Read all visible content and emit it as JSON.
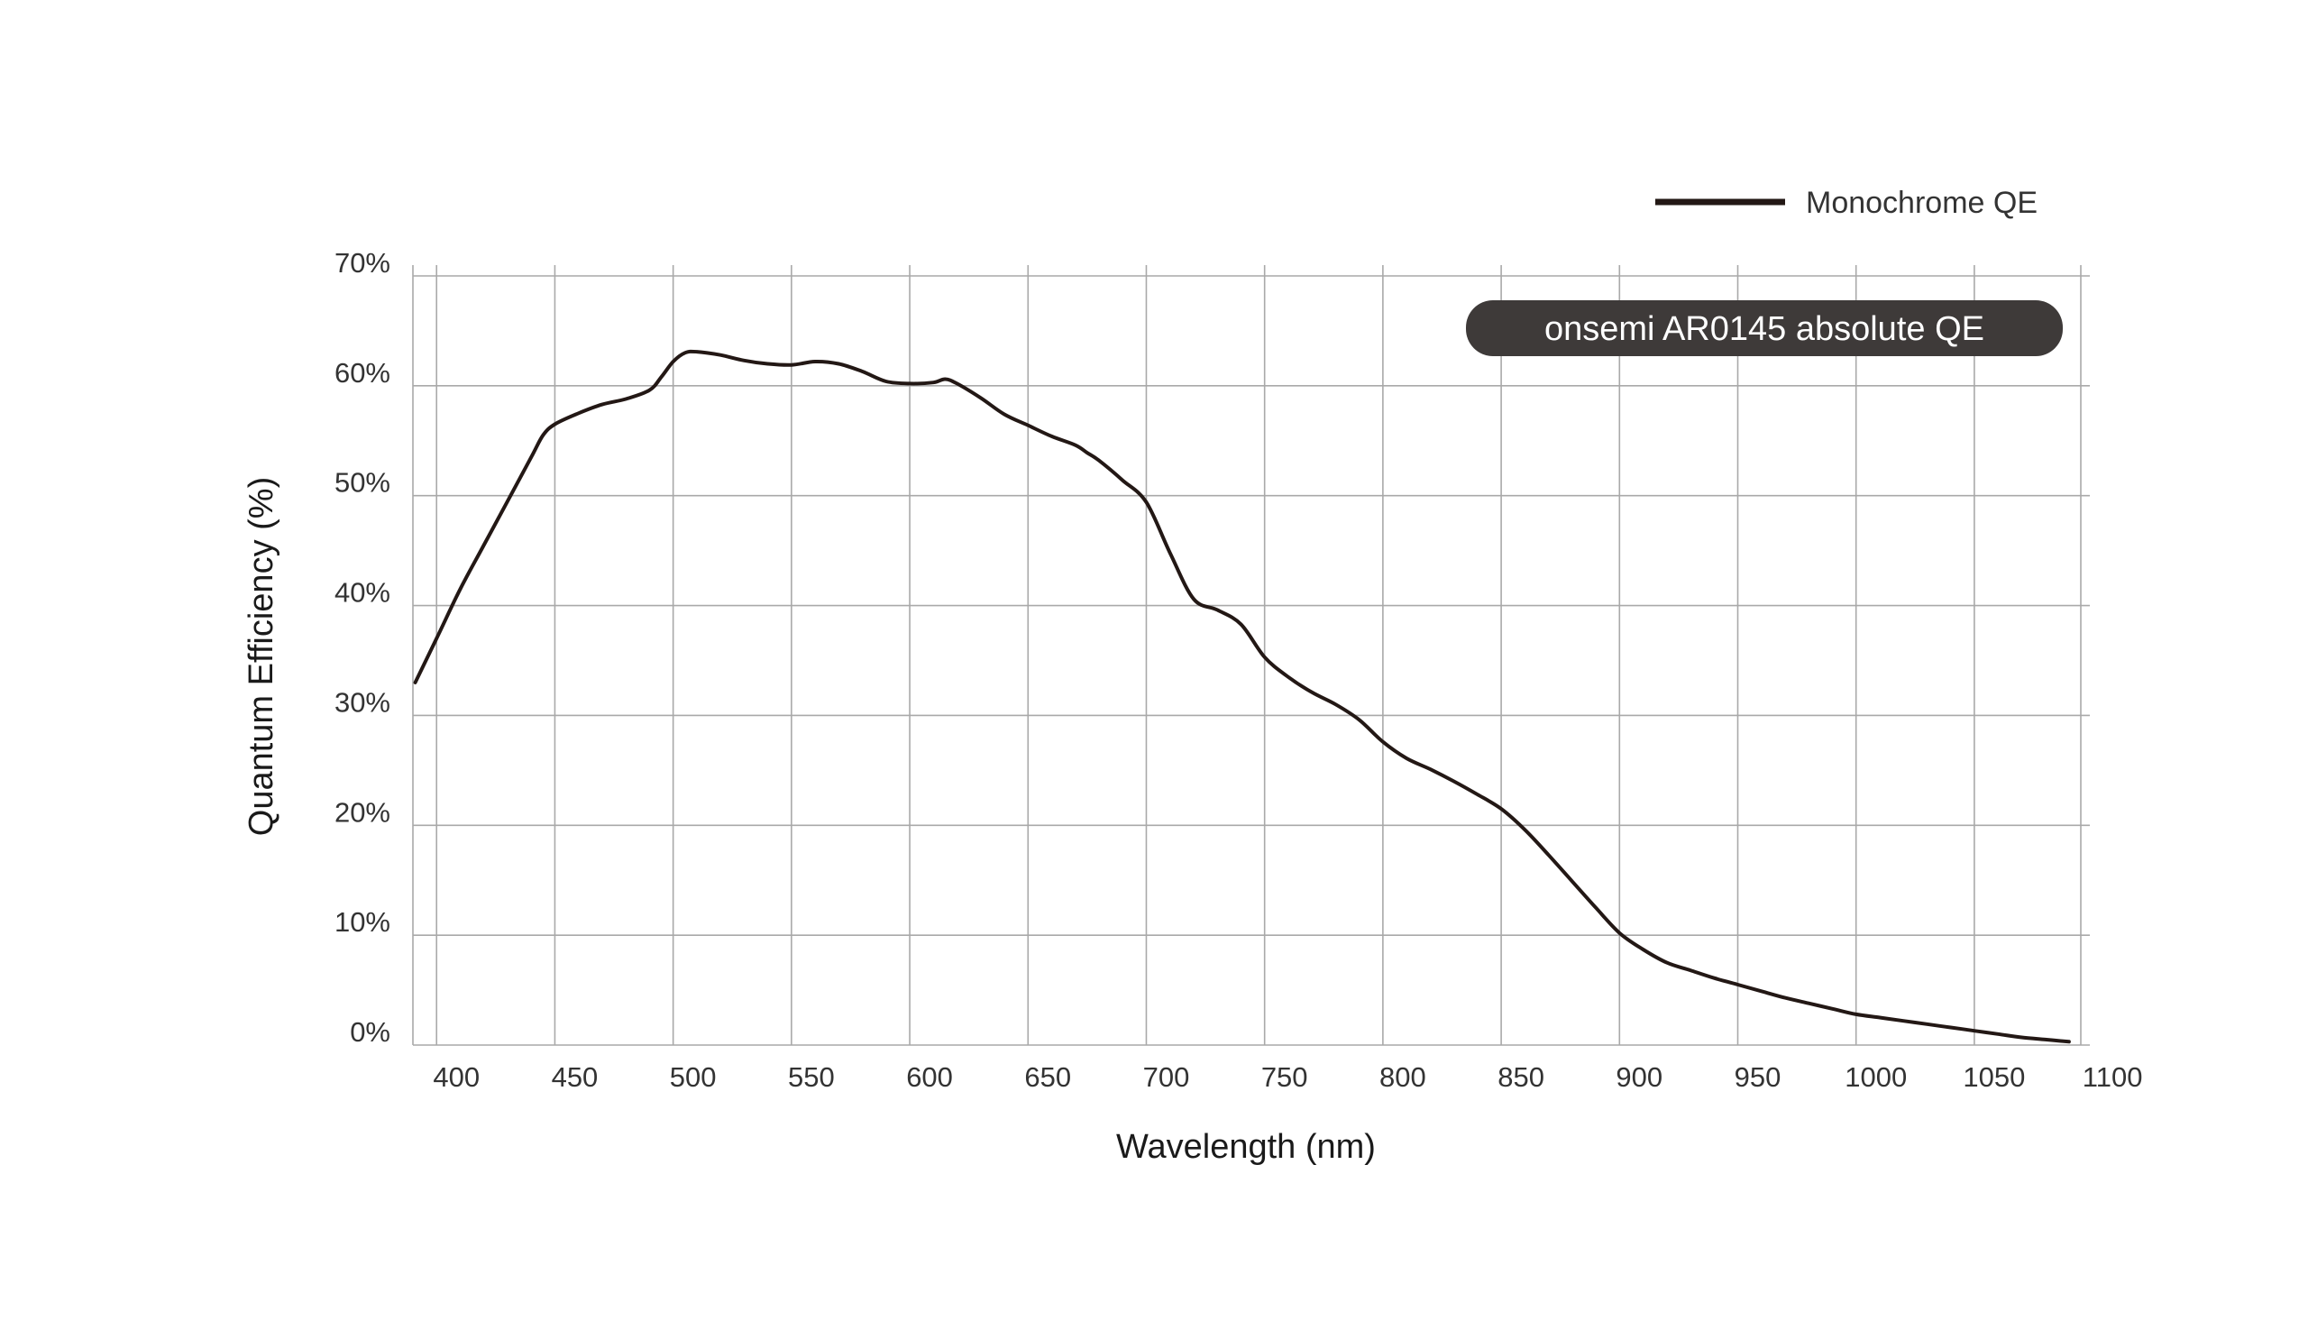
{
  "chart_data": {
    "type": "line",
    "xlabel": "Wavelength (nm)",
    "ylabel": "Quantum Efficiency (%)",
    "xlim": [
      390,
      1095
    ],
    "ylim": [
      0,
      70
    ],
    "x_ticks": [
      400,
      450,
      500,
      550,
      600,
      650,
      700,
      750,
      800,
      850,
      900,
      950,
      1000,
      1050,
      1100
    ],
    "y_ticks": [
      0,
      10,
      20,
      30,
      40,
      50,
      60,
      70
    ],
    "y_tick_labels": [
      "0%",
      "10%",
      "20%",
      "30%",
      "40%",
      "50%",
      "60%",
      "70%"
    ],
    "grid": true,
    "legend": {
      "position": "top-right",
      "entries": [
        "Monochrome QE"
      ]
    },
    "annotation": "onsemi AR0145 absolute QE",
    "series": [
      {
        "name": "Monochrome QE",
        "color": "#231815",
        "points": [
          [
            391,
            33.0
          ],
          [
            400,
            37.0
          ],
          [
            410,
            41.5
          ],
          [
            420,
            45.5
          ],
          [
            430,
            49.5
          ],
          [
            440,
            53.5
          ],
          [
            445,
            55.5
          ],
          [
            450,
            56.5
          ],
          [
            460,
            57.5
          ],
          [
            470,
            58.3
          ],
          [
            480,
            58.8
          ],
          [
            490,
            59.6
          ],
          [
            495,
            60.8
          ],
          [
            500,
            62.2
          ],
          [
            505,
            63.0
          ],
          [
            510,
            63.1
          ],
          [
            520,
            62.8
          ],
          [
            530,
            62.3
          ],
          [
            540,
            62.0
          ],
          [
            550,
            61.9
          ],
          [
            560,
            62.2
          ],
          [
            570,
            62.0
          ],
          [
            580,
            61.3
          ],
          [
            590,
            60.4
          ],
          [
            600,
            60.2
          ],
          [
            610,
            60.3
          ],
          [
            615,
            60.6
          ],
          [
            620,
            60.2
          ],
          [
            630,
            58.9
          ],
          [
            640,
            57.4
          ],
          [
            650,
            56.4
          ],
          [
            660,
            55.4
          ],
          [
            670,
            54.6
          ],
          [
            675,
            53.9
          ],
          [
            680,
            53.2
          ],
          [
            690,
            51.4
          ],
          [
            700,
            49.4
          ],
          [
            710,
            44.8
          ],
          [
            720,
            40.6
          ],
          [
            730,
            39.6
          ],
          [
            740,
            38.3
          ],
          [
            750,
            35.3
          ],
          [
            760,
            33.5
          ],
          [
            770,
            32.1
          ],
          [
            780,
            31.0
          ],
          [
            790,
            29.6
          ],
          [
            800,
            27.6
          ],
          [
            810,
            26.1
          ],
          [
            820,
            25.1
          ],
          [
            830,
            24.0
          ],
          [
            840,
            22.8
          ],
          [
            850,
            21.5
          ],
          [
            860,
            19.6
          ],
          [
            870,
            17.3
          ],
          [
            880,
            14.9
          ],
          [
            890,
            12.5
          ],
          [
            900,
            10.2
          ],
          [
            910,
            8.7
          ],
          [
            920,
            7.5
          ],
          [
            930,
            6.8
          ],
          [
            940,
            6.1
          ],
          [
            950,
            5.5
          ],
          [
            960,
            4.9
          ],
          [
            970,
            4.3
          ],
          [
            980,
            3.8
          ],
          [
            990,
            3.3
          ],
          [
            1000,
            2.8
          ],
          [
            1010,
            2.5
          ],
          [
            1020,
            2.2
          ],
          [
            1030,
            1.9
          ],
          [
            1040,
            1.6
          ],
          [
            1050,
            1.3
          ],
          [
            1060,
            1.0
          ],
          [
            1070,
            0.7
          ],
          [
            1080,
            0.5
          ],
          [
            1090,
            0.3
          ]
        ]
      }
    ]
  }
}
